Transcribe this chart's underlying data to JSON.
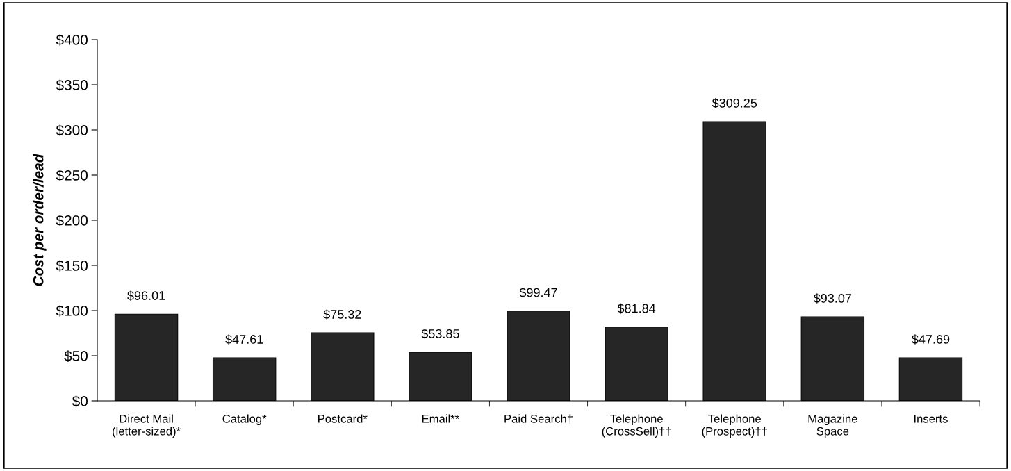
{
  "chart_data": {
    "type": "bar",
    "ylabel": "Cost per order/lead",
    "categories": [
      "Direct Mail\n(letter-sized)*",
      "Catalog*",
      "Postcard*",
      "Email**",
      "Paid Search†",
      "Telephone\n(CrossSell)††",
      "Telephone\n(Prospect)††",
      "Magazine\nSpace",
      "Inserts"
    ],
    "values": [
      96.01,
      47.61,
      75.32,
      53.85,
      99.47,
      81.84,
      309.25,
      93.07,
      47.69
    ],
    "value_labels": [
      "$96.01",
      "$47.61",
      "$75.32",
      "$53.85",
      "$99.47",
      "$81.84",
      "$309.25",
      "$93.07",
      "$47.69"
    ],
    "color": "#262626",
    "ylim": [
      0,
      400
    ],
    "yticks": [
      {
        "value": 0,
        "label": "$0"
      },
      {
        "value": 50,
        "label": "$50"
      },
      {
        "value": 100,
        "label": "$100"
      },
      {
        "value": 150,
        "label": "$150"
      },
      {
        "value": 200,
        "label": "$200"
      },
      {
        "value": 250,
        "label": "$250"
      },
      {
        "value": 300,
        "label": "$300"
      },
      {
        "value": 350,
        "label": "$350"
      },
      {
        "value": 400,
        "label": "$400"
      }
    ],
    "grid": false
  }
}
